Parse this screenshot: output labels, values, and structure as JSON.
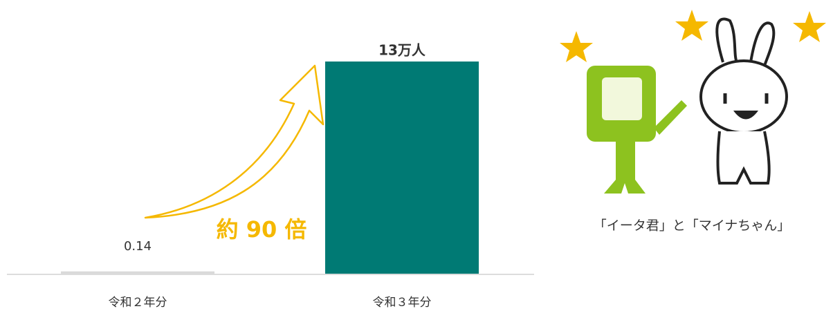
{
  "chart_data": {
    "type": "bar",
    "categories": [
      "令和２年分",
      "令和３年分"
    ],
    "values": [
      0.14,
      13
    ],
    "value_labels": [
      "0.14",
      "13万人"
    ],
    "colors": [
      "#d9d9d9",
      "#007a74"
    ],
    "annotation": "約 90 倍",
    "caption": "「イータ君」と「マイナちゃん」"
  }
}
